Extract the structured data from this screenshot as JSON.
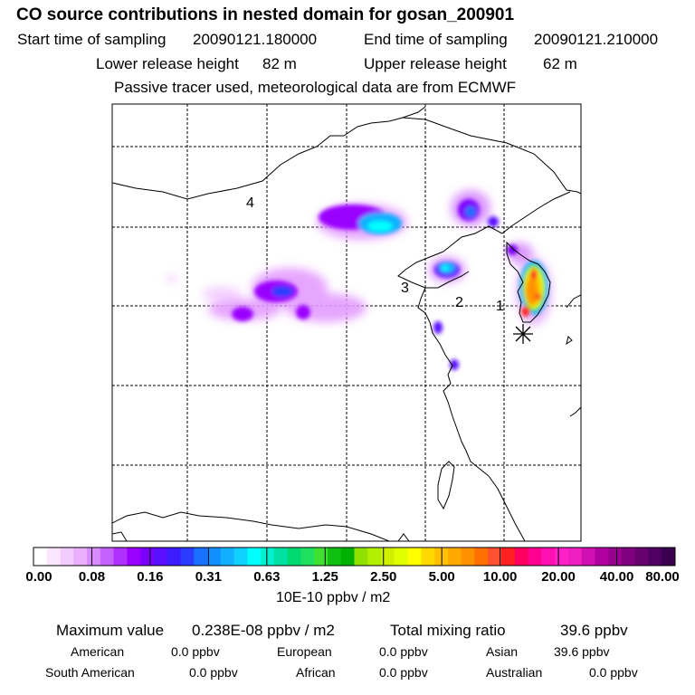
{
  "header": {
    "title": "CO  source contributions in nested domain for gosan_200901",
    "start_label": "Start time of sampling",
    "start_value": "20090121.180000",
    "end_label": "End time of sampling",
    "end_value": "20090121.210000",
    "lower_label": "Lower release height",
    "lower_value": "82 m",
    "upper_label": "Upper release height",
    "upper_value": "62 m",
    "note": "Passive tracer used, meteorological data are from ECMWF"
  },
  "map": {
    "region_labels": [
      "1",
      "2",
      "3",
      "4"
    ],
    "receptor_marker": "asterisk-icon"
  },
  "colorbar": {
    "ticks": [
      "0.00",
      "0.08",
      "0.16",
      "0.31",
      "0.63",
      "1.25",
      "2.50",
      "5.00",
      "10.00",
      "20.00",
      "40.00",
      "80.00"
    ],
    "colors": [
      "#ffffff",
      "#fbe6ff",
      "#f3ccff",
      "#eab0ff",
      "#d98cff",
      "#c660ff",
      "#b030ff",
      "#9a00ff",
      "#7a00ff",
      "#5a10ff",
      "#3c1cff",
      "#2a3cff",
      "#1a70ff",
      "#1090ff",
      "#10b0ff",
      "#10d0ff",
      "#00ffff",
      "#00f0d0",
      "#00e0a0",
      "#00d870",
      "#20e060",
      "#40e030",
      "#10c010",
      "#00b000",
      "#90e000",
      "#b0f000",
      "#d0f000",
      "#e0ff00",
      "#ffff00",
      "#ffd800",
      "#ffc000",
      "#ffa800",
      "#ff9000",
      "#ff7000",
      "#ff5030",
      "#ff2020",
      "#ff0060",
      "#ff0090",
      "#ff10b0",
      "#ff20c8",
      "#f020c0",
      "#d010b0",
      "#b000a0",
      "#980090",
      "#800080",
      "#680070",
      "#500060",
      "#3a0050"
    ],
    "units": "10E-10 ppbv / m2"
  },
  "summary": {
    "max_label": "Maximum value",
    "max_value": "0.238E-08 ppbv / m2",
    "total_label": "Total mixing ratio",
    "total_value": "39.6 ppbv",
    "regions": [
      {
        "name": "American",
        "value": "0.0 ppbv"
      },
      {
        "name": "European",
        "value": "0.0 ppbv"
      },
      {
        "name": "Asian",
        "value": "39.6 ppbv"
      },
      {
        "name": "South American",
        "value": "0.0 ppbv"
      },
      {
        "name": "African",
        "value": "0.0 ppbv"
      },
      {
        "name": "Australian",
        "value": "0.0 ppbv"
      }
    ]
  }
}
